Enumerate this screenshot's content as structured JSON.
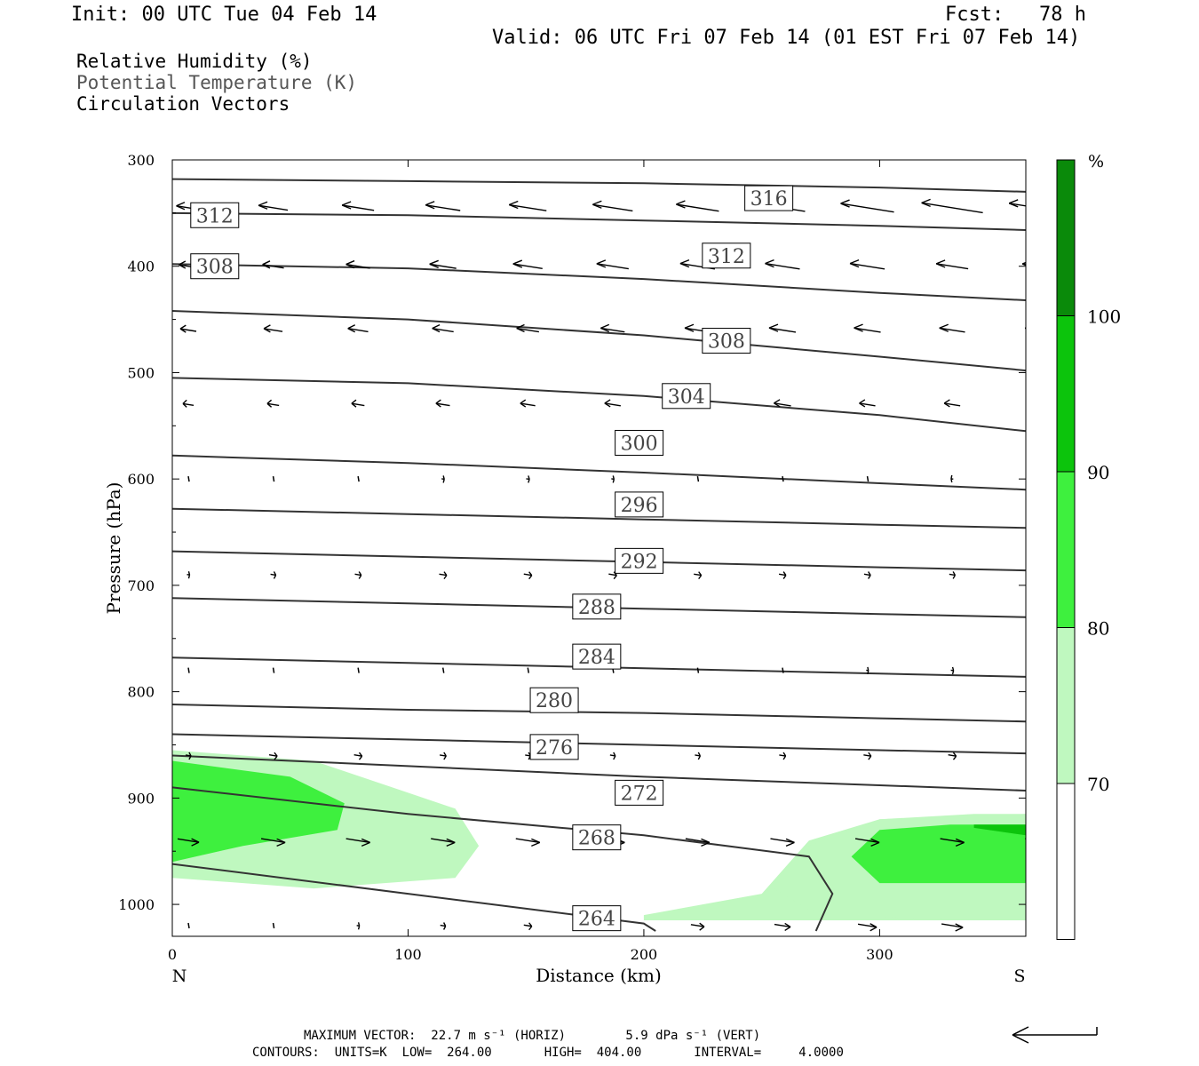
{
  "header": {
    "init": "Init: 00 UTC Tue 04 Feb 14",
    "fcst": "Fcst:   78 h",
    "valid": "Valid: 06 UTC Fri 07 Feb 14 (01 EST Fri 07 Feb 14)"
  },
  "legend": {
    "line1": "Relative Humidity (%)",
    "line2": "Potential Temperature (K)",
    "line3": "Circulation Vectors"
  },
  "footer": {
    "line1": "MAXIMUM VECTOR:  22.7 m s⁻¹ (HORIZ)        5.9 dPa s⁻¹ (VERT)",
    "line2": "CONTOURS:  UNITS=K  LOW=  264.00       HIGH=  404.00       INTERVAL=     4.0000"
  },
  "colors": {
    "rh_70": "#bff8bf",
    "rh_80": "#3ef03e",
    "rh_90": "#0cc40c",
    "rh_100": "#0a8a0a",
    "contour": "#333333"
  },
  "chart_data": {
    "type": "cross-section",
    "xlabel": "Distance (km)",
    "ylabel": "Pressure (hPa)",
    "xlim": [
      0,
      362
    ],
    "ylim": [
      300,
      1030
    ],
    "x_ticks": [
      0,
      100,
      200,
      300
    ],
    "y_ticks": [
      300,
      400,
      500,
      600,
      700,
      800,
      900,
      1000
    ],
    "left_end": "N",
    "right_end": "S",
    "colorbar": {
      "unit": "%",
      "levels": [
        70,
        80,
        90,
        100
      ]
    },
    "theta_contours": [
      {
        "label": "264",
        "x": [
          0,
          100,
          200,
          205
        ],
        "p": [
          962,
          990,
          1018,
          1025
        ]
      },
      {
        "label": "268",
        "x": [
          0,
          100,
          200,
          270,
          280,
          273
        ],
        "p": [
          890,
          915,
          935,
          955,
          990,
          1025
        ]
      },
      {
        "label": "272",
        "x": [
          0,
          100,
          200,
          300,
          362
        ],
        "p": [
          860,
          870,
          880,
          888,
          893
        ]
      },
      {
        "label": "276",
        "x": [
          0,
          100,
          200,
          300,
          362
        ],
        "p": [
          840,
          845,
          850,
          855,
          858
        ]
      },
      {
        "label": "280",
        "x": [
          0,
          100,
          200,
          300,
          362
        ],
        "p": [
          812,
          817,
          820,
          825,
          828
        ]
      },
      {
        "label": "284",
        "x": [
          0,
          100,
          200,
          300,
          362
        ],
        "p": [
          768,
          773,
          778,
          783,
          786
        ]
      },
      {
        "label": "288",
        "x": [
          0,
          100,
          200,
          300,
          362
        ],
        "p": [
          712,
          717,
          722,
          727,
          730
        ]
      },
      {
        "label": "292",
        "x": [
          0,
          100,
          200,
          300,
          362
        ],
        "p": [
          668,
          673,
          678,
          683,
          686
        ]
      },
      {
        "label": "296",
        "x": [
          0,
          100,
          200,
          300,
          362
        ],
        "p": [
          628,
          633,
          638,
          643,
          646
        ]
      },
      {
        "label": "300",
        "x": [
          0,
          100,
          200,
          300,
          362
        ],
        "p": [
          578,
          585,
          594,
          604,
          610
        ]
      },
      {
        "label": "304",
        "x": [
          0,
          100,
          200,
          300,
          362
        ],
        "p": [
          505,
          510,
          522,
          540,
          555
        ]
      },
      {
        "label": "308",
        "x": [
          0,
          100,
          200,
          300,
          362
        ],
        "p": [
          442,
          450,
          465,
          485,
          498
        ]
      },
      {
        "label": "312",
        "x": [
          0,
          100,
          200,
          300,
          362
        ],
        "p": [
          398,
          402,
          412,
          425,
          432
        ]
      },
      {
        "label": "316",
        "x": [
          0,
          100,
          200,
          300,
          362
        ],
        "p": [
          350,
          352,
          357,
          362,
          366
        ]
      },
      {
        "label": "",
        "x": [
          0,
          100,
          200,
          300,
          362
        ],
        "p": [
          318,
          320,
          322,
          326,
          330
        ]
      }
    ],
    "contour_labels": [
      {
        "text": "312",
        "x": 18,
        "p": 352
      },
      {
        "text": "308",
        "x": 18,
        "p": 400
      },
      {
        "text": "316",
        "x": 253,
        "p": 336
      },
      {
        "text": "312",
        "x": 235,
        "p": 390
      },
      {
        "text": "308",
        "x": 235,
        "p": 470
      },
      {
        "text": "304",
        "x": 218,
        "p": 522
      },
      {
        "text": "300",
        "x": 198,
        "p": 566
      },
      {
        "text": "296",
        "x": 198,
        "p": 624
      },
      {
        "text": "292",
        "x": 198,
        "p": 677
      },
      {
        "text": "288",
        "x": 180,
        "p": 720
      },
      {
        "text": "284",
        "x": 180,
        "p": 767
      },
      {
        "text": "280",
        "x": 162,
        "p": 808
      },
      {
        "text": "276",
        "x": 162,
        "p": 852
      },
      {
        "text": "272",
        "x": 198,
        "p": 895
      },
      {
        "text": "268",
        "x": 180,
        "p": 937
      },
      {
        "text": "264",
        "x": 180,
        "p": 1013
      }
    ],
    "vectors": {
      "x": [
        0,
        36,
        72,
        108,
        144,
        180,
        216,
        252,
        288,
        324,
        360
      ],
      "rows": [
        {
          "p": 345,
          "u": [
            -0.45,
            -0.55,
            -0.6,
            -0.65,
            -0.7,
            -0.75,
            -0.8,
            -0.85,
            -1.0,
            -1.15,
            -1.05
          ]
        },
        {
          "p": 400,
          "u": [
            -0.35,
            -0.4,
            -0.45,
            -0.5,
            -0.55,
            -0.6,
            -0.65,
            -0.65,
            -0.65,
            -0.6,
            -0.55
          ]
        },
        {
          "p": 460,
          "u": [
            -0.3,
            -0.35,
            -0.38,
            -0.4,
            -0.42,
            -0.45,
            -0.48,
            -0.5,
            -0.5,
            -0.48,
            -0.45
          ]
        },
        {
          "p": 530,
          "u": [
            -0.2,
            -0.22,
            -0.24,
            -0.26,
            -0.28,
            -0.3,
            -0.32,
            -0.32,
            -0.3,
            -0.3,
            -0.28
          ]
        },
        {
          "p": 600,
          "u": [
            0.0,
            0.0,
            0.0,
            0.05,
            0.06,
            0.05,
            0.03,
            0.0,
            -0.02,
            -0.04,
            -0.05
          ]
        },
        {
          "p": 690,
          "u": [
            0.05,
            0.1,
            0.12,
            0.14,
            0.15,
            0.15,
            0.14,
            0.13,
            0.12,
            0.11,
            0.1
          ]
        },
        {
          "p": 780,
          "u": [
            0.0,
            0.0,
            0.0,
            0.0,
            0.0,
            0.0,
            0.02,
            0.03,
            0.04,
            0.05,
            0.05
          ]
        },
        {
          "p": 860,
          "u": [
            0.1,
            0.15,
            0.15,
            0.12,
            0.1,
            0.1,
            0.1,
            0.12,
            0.14,
            0.15,
            0.16
          ]
        },
        {
          "p": 940,
          "u": [
            0.4,
            0.45,
            0.45,
            0.45,
            0.45,
            0.45,
            0.45,
            0.45,
            0.45,
            0.45,
            0.45
          ]
        },
        {
          "p": 1020,
          "u": [
            0.0,
            0.0,
            0.05,
            0.1,
            0.15,
            0.2,
            0.25,
            0.3,
            0.35,
            0.4,
            0.4
          ]
        }
      ]
    },
    "rh_regions": [
      {
        "level": "70",
        "x": [
          0,
          60,
          120,
          130,
          120,
          60,
          0
        ],
        "p": [
          855,
          865,
          910,
          945,
          975,
          985,
          975
        ]
      },
      {
        "level": "80",
        "x": [
          0,
          50,
          73,
          70,
          30,
          0
        ],
        "p": [
          865,
          880,
          905,
          930,
          945,
          960
        ]
      },
      {
        "level": "70",
        "x": [
          200,
          250,
          270,
          300,
          340,
          362,
          362,
          320,
          260,
          220,
          200
        ],
        "p": [
          1010,
          990,
          940,
          920,
          915,
          915,
          1015,
          1015,
          1015,
          1015,
          1015
        ]
      },
      {
        "level": "70",
        "x": [
          255,
          270,
          300,
          362,
          362,
          340,
          300,
          270,
          255
        ],
        "p": [
          985,
          945,
          920,
          915,
          1015,
          1015,
          1012,
          1005,
          985
        ]
      },
      {
        "level": "80",
        "x": [
          288,
          300,
          330,
          362,
          362,
          330,
          300,
          288
        ],
        "p": [
          955,
          930,
          925,
          925,
          980,
          980,
          980,
          955
        ]
      },
      {
        "level": "90",
        "x": [
          340,
          362,
          362,
          340
        ],
        "p": [
          925,
          925,
          935,
          928
        ]
      }
    ]
  }
}
